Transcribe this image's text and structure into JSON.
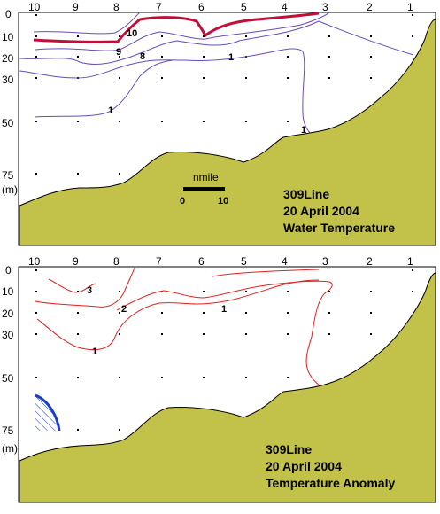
{
  "stations": [
    "10",
    "9",
    "8",
    "7",
    "6",
    "5",
    "4",
    "3",
    "2",
    "1"
  ],
  "depth_ticks": [
    "0",
    "10",
    "20",
    "30",
    "50",
    "75"
  ],
  "depth_unit": "(m)",
  "colors": {
    "seabed": "#c2c24a",
    "contour_blue": "#6b4bb8",
    "contour_red_bold": "#c0103a",
    "contour_red": "#e02020",
    "hatch_blue": "#1a3ccc"
  },
  "top_panel": {
    "line_name": "309Line",
    "date": "20 April 2004",
    "subject": "Water Temperature",
    "contour_labels": [
      "10",
      "9",
      "8",
      "1",
      "1",
      "1"
    ],
    "scale_bar": {
      "unit": "nmile",
      "start": "0",
      "end": "10"
    }
  },
  "bottom_panel": {
    "line_name": "309Line",
    "date": "20 April 2004",
    "subject": "Temperature Anomaly",
    "contour_labels": [
      "3",
      "2",
      "1",
      "1"
    ]
  }
}
